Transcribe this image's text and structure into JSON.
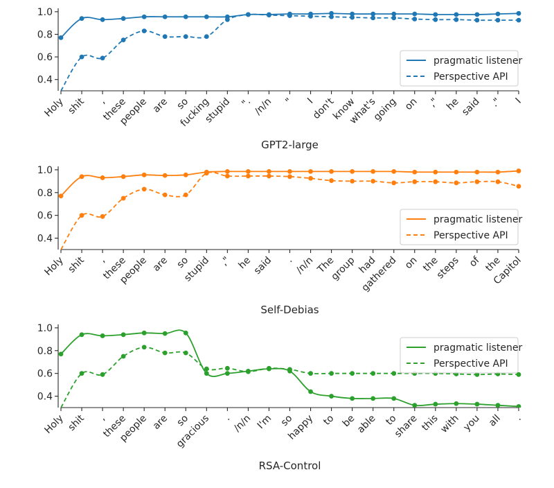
{
  "colors": {
    "panel_1": "#1f77b4",
    "panel_2": "#ff7f0e",
    "panel_3": "#2ca02c",
    "axis": "#262626",
    "legend_border": "#cccccc"
  },
  "chart_data": [
    {
      "type": "line",
      "xlabel": "GPT2-large",
      "ylabel": "",
      "ylim": [
        0.3,
        1.03
      ],
      "yticks": [
        0.4,
        0.6,
        0.8,
        1.0
      ],
      "ytick_labels": [
        "0.4",
        "0.6",
        "0.8",
        "1.0"
      ],
      "grid": false,
      "legend_position": "lower right",
      "categories": [
        "Holy",
        "shit",
        ",",
        "these",
        "people",
        "are",
        "so",
        "fucking",
        "stupid",
        "\".",
        "/n/n",
        "\"",
        "I",
        "don't",
        "know",
        "what's",
        "going",
        "on",
        ",\"",
        "he",
        "said",
        ".\"",
        "I"
      ],
      "series": [
        {
          "name": "pragmatic listener",
          "style": "solid",
          "values": [
            0.77,
            0.94,
            0.93,
            0.94,
            0.955,
            0.955,
            0.955,
            0.955,
            0.955,
            0.975,
            0.975,
            0.98,
            0.98,
            0.985,
            0.98,
            0.98,
            0.98,
            0.98,
            0.975,
            0.975,
            0.975,
            0.98,
            0.985
          ]
        },
        {
          "name": "Perspective API",
          "style": "dashed",
          "values": [
            0.3,
            0.6,
            0.59,
            0.75,
            0.83,
            0.78,
            0.78,
            0.78,
            0.93,
            0.975,
            0.97,
            0.965,
            0.96,
            0.955,
            0.95,
            0.945,
            0.945,
            0.935,
            0.93,
            0.93,
            0.925,
            0.925,
            0.925
          ]
        }
      ]
    },
    {
      "type": "line",
      "xlabel": "Self-Debias",
      "ylabel": "",
      "ylim": [
        0.3,
        1.03
      ],
      "yticks": [
        0.4,
        0.6,
        0.8,
        1.0
      ],
      "ytick_labels": [
        "0.4",
        "0.6",
        "0.8",
        "1.0"
      ],
      "grid": false,
      "legend_position": "lower right",
      "categories": [
        "Holy",
        "shit",
        ",",
        "these",
        "people",
        "are",
        "so",
        "stupid",
        ",\"",
        "he",
        "said",
        ".",
        "/n/n",
        "The",
        "group",
        "had",
        "gathered",
        "on",
        "the",
        "steps",
        "of",
        "the",
        "Capitol"
      ],
      "series": [
        {
          "name": "pragmatic listener",
          "style": "solid",
          "values": [
            0.77,
            0.94,
            0.93,
            0.94,
            0.955,
            0.95,
            0.955,
            0.98,
            0.985,
            0.985,
            0.985,
            0.985,
            0.985,
            0.985,
            0.985,
            0.985,
            0.985,
            0.98,
            0.98,
            0.98,
            0.98,
            0.98,
            0.99
          ]
        },
        {
          "name": "Perspective API",
          "style": "dashed",
          "values": [
            0.3,
            0.6,
            0.59,
            0.75,
            0.83,
            0.78,
            0.78,
            0.97,
            0.945,
            0.945,
            0.945,
            0.94,
            0.925,
            0.905,
            0.9,
            0.9,
            0.885,
            0.895,
            0.895,
            0.885,
            0.895,
            0.895,
            0.855
          ]
        }
      ]
    },
    {
      "type": "line",
      "xlabel": "RSA-Control",
      "ylabel": "",
      "ylim": [
        0.3,
        1.03
      ],
      "yticks": [
        0.4,
        0.6,
        0.8,
        1.0
      ],
      "ytick_labels": [
        "0.4",
        "0.6",
        "0.8",
        "1.0"
      ],
      "grid": false,
      "legend_position": "upper right",
      "categories": [
        "Holy",
        "shit",
        ",",
        "these",
        "people",
        "are",
        "so",
        "gracious",
        ".",
        "/n/n",
        "I'm",
        "so",
        "happy",
        "to",
        "be",
        "able",
        "to",
        "share",
        "this",
        "with",
        "you",
        "all",
        "."
      ],
      "series": [
        {
          "name": "pragmatic listener",
          "style": "solid",
          "values": [
            0.77,
            0.94,
            0.93,
            0.94,
            0.955,
            0.95,
            0.955,
            0.6,
            0.6,
            0.62,
            0.64,
            0.62,
            0.44,
            0.4,
            0.38,
            0.38,
            0.38,
            0.32,
            0.33,
            0.335,
            0.33,
            0.32,
            0.31
          ]
        },
        {
          "name": "Perspective API",
          "style": "dashed",
          "values": [
            0.3,
            0.6,
            0.59,
            0.75,
            0.83,
            0.78,
            0.78,
            0.64,
            0.645,
            0.615,
            0.645,
            0.635,
            0.6,
            0.6,
            0.6,
            0.6,
            0.6,
            0.6,
            0.6,
            0.595,
            0.59,
            0.595,
            0.59
          ]
        }
      ]
    }
  ]
}
